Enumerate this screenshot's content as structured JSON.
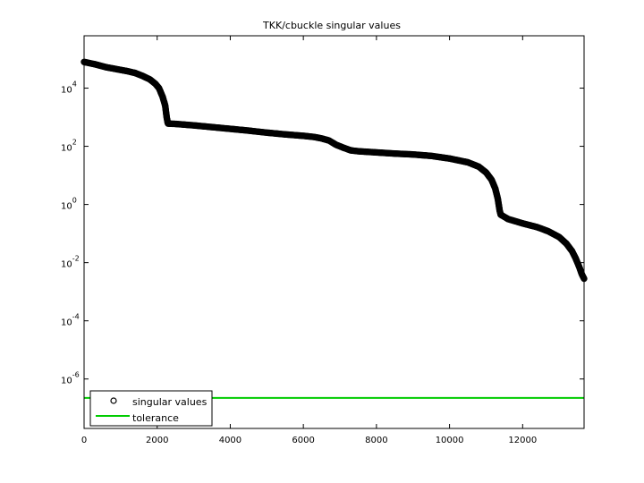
{
  "chart_data": {
    "type": "scatter",
    "title": "TKK/cbuckle singular values",
    "xlabel": "",
    "ylabel": "",
    "xlim": [
      0,
      13681
    ],
    "ylim_log10": [
      -7.7,
      5.8
    ],
    "y_scale": "log",
    "x_ticks": [
      {
        "value": 0,
        "label": "0"
      },
      {
        "value": 2000,
        "label": "2000"
      },
      {
        "value": 4000,
        "label": "4000"
      },
      {
        "value": 6000,
        "label": "6000"
      },
      {
        "value": 8000,
        "label": "8000"
      },
      {
        "value": 10000,
        "label": "10000"
      },
      {
        "value": 12000,
        "label": "12000"
      }
    ],
    "y_ticks": [
      {
        "exp": 4,
        "base": "10",
        "sup": "4"
      },
      {
        "exp": 2,
        "base": "10",
        "sup": "2"
      },
      {
        "exp": 0,
        "base": "10",
        "sup": "0"
      },
      {
        "exp": -2,
        "base": "10",
        "sup": "-2"
      },
      {
        "exp": -4,
        "base": "10",
        "sup": "-4"
      },
      {
        "exp": -6,
        "base": "10",
        "sup": "-6"
      }
    ],
    "grid": false,
    "legend_position": "bottom-left",
    "series": [
      {
        "name": "singular values",
        "marker": "circle",
        "color": "#000000",
        "log10_points": [
          [
            0,
            4.9
          ],
          [
            300,
            4.82
          ],
          [
            600,
            4.72
          ],
          [
            900,
            4.65
          ],
          [
            1200,
            4.58
          ],
          [
            1400,
            4.52
          ],
          [
            1600,
            4.42
          ],
          [
            1800,
            4.3
          ],
          [
            1950,
            4.15
          ],
          [
            2050,
            4.0
          ],
          [
            2150,
            3.7
          ],
          [
            2220,
            3.4
          ],
          [
            2260,
            3.0
          ],
          [
            2290,
            2.8
          ],
          [
            2300,
            2.78
          ],
          [
            2500,
            2.77
          ],
          [
            3000,
            2.72
          ],
          [
            3500,
            2.66
          ],
          [
            4000,
            2.6
          ],
          [
            4500,
            2.54
          ],
          [
            5000,
            2.47
          ],
          [
            5500,
            2.41
          ],
          [
            6000,
            2.36
          ],
          [
            6300,
            2.32
          ],
          [
            6500,
            2.27
          ],
          [
            6700,
            2.2
          ],
          [
            6900,
            2.05
          ],
          [
            7100,
            1.95
          ],
          [
            7300,
            1.86
          ],
          [
            7500,
            1.83
          ],
          [
            8000,
            1.79
          ],
          [
            8500,
            1.75
          ],
          [
            9000,
            1.72
          ],
          [
            9500,
            1.67
          ],
          [
            10000,
            1.58
          ],
          [
            10500,
            1.45
          ],
          [
            10800,
            1.3
          ],
          [
            11000,
            1.1
          ],
          [
            11150,
            0.85
          ],
          [
            11250,
            0.55
          ],
          [
            11320,
            0.2
          ],
          [
            11370,
            -0.2
          ],
          [
            11400,
            -0.35
          ],
          [
            11600,
            -0.5
          ],
          [
            12000,
            -0.65
          ],
          [
            12400,
            -0.78
          ],
          [
            12700,
            -0.92
          ],
          [
            13000,
            -1.12
          ],
          [
            13200,
            -1.35
          ],
          [
            13350,
            -1.6
          ],
          [
            13450,
            -1.85
          ],
          [
            13550,
            -2.15
          ],
          [
            13620,
            -2.4
          ],
          [
            13681,
            -2.55
          ]
        ]
      },
      {
        "name": "tolerance",
        "marker": "line",
        "color": "#00cc00",
        "log10_value": -6.65
      }
    ]
  }
}
